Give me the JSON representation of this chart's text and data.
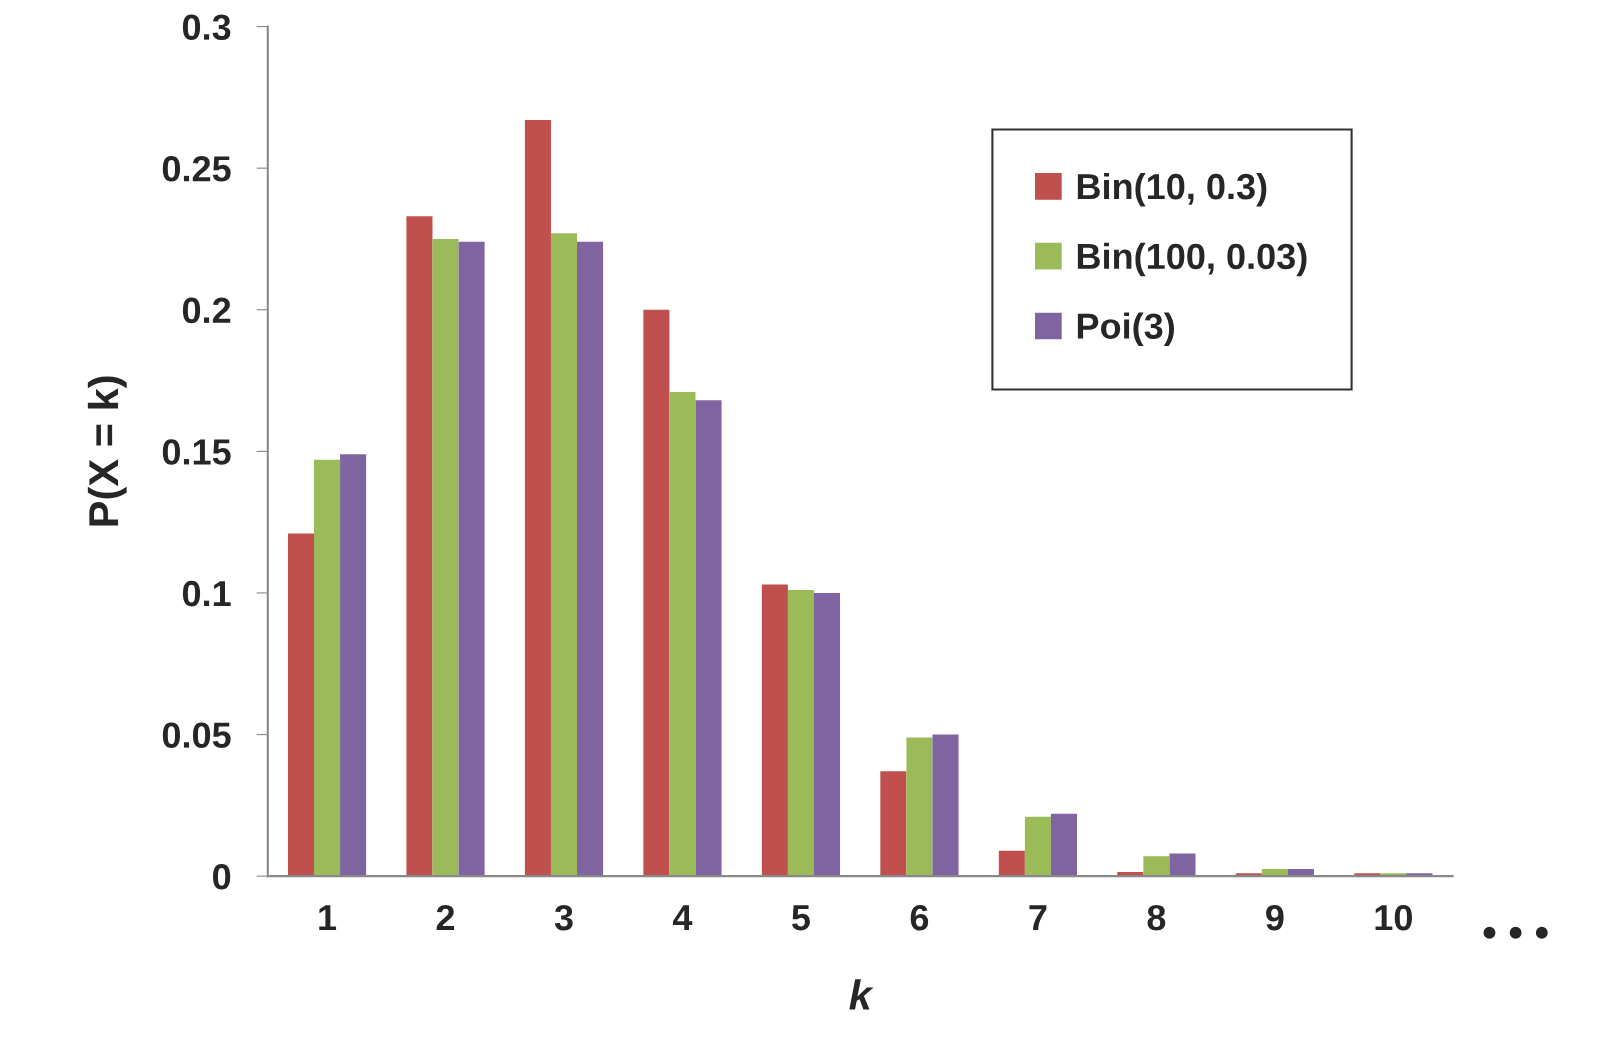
{
  "chart_data": {
    "type": "bar",
    "xlabel": "k",
    "ylabel": "P(X = k)",
    "categories": [
      "1",
      "2",
      "3",
      "4",
      "5",
      "6",
      "7",
      "8",
      "9",
      "10"
    ],
    "series": [
      {
        "name": "Bin(10, 0.3)",
        "color": "#c0504d",
        "values": [
          0.121,
          0.233,
          0.267,
          0.2,
          0.103,
          0.037,
          0.009,
          0.0015,
          0.001,
          0.001
        ]
      },
      {
        "name": "Bin(100, 0.03)",
        "color": "#9bbb59",
        "values": [
          0.147,
          0.225,
          0.227,
          0.171,
          0.101,
          0.049,
          0.021,
          0.007,
          0.0025,
          0.001
        ]
      },
      {
        "name": "Poi(3)",
        "color": "#8064a2",
        "values": [
          0.149,
          0.224,
          0.224,
          0.168,
          0.1,
          0.05,
          0.022,
          0.008,
          0.0025,
          0.001
        ]
      }
    ],
    "ylim": [
      0,
      0.3
    ],
    "yticks": [
      0,
      0.05,
      0.1,
      0.15,
      0.2,
      0.25,
      0.3
    ],
    "legend": "top right",
    "annotations": [
      "• • •"
    ]
  }
}
